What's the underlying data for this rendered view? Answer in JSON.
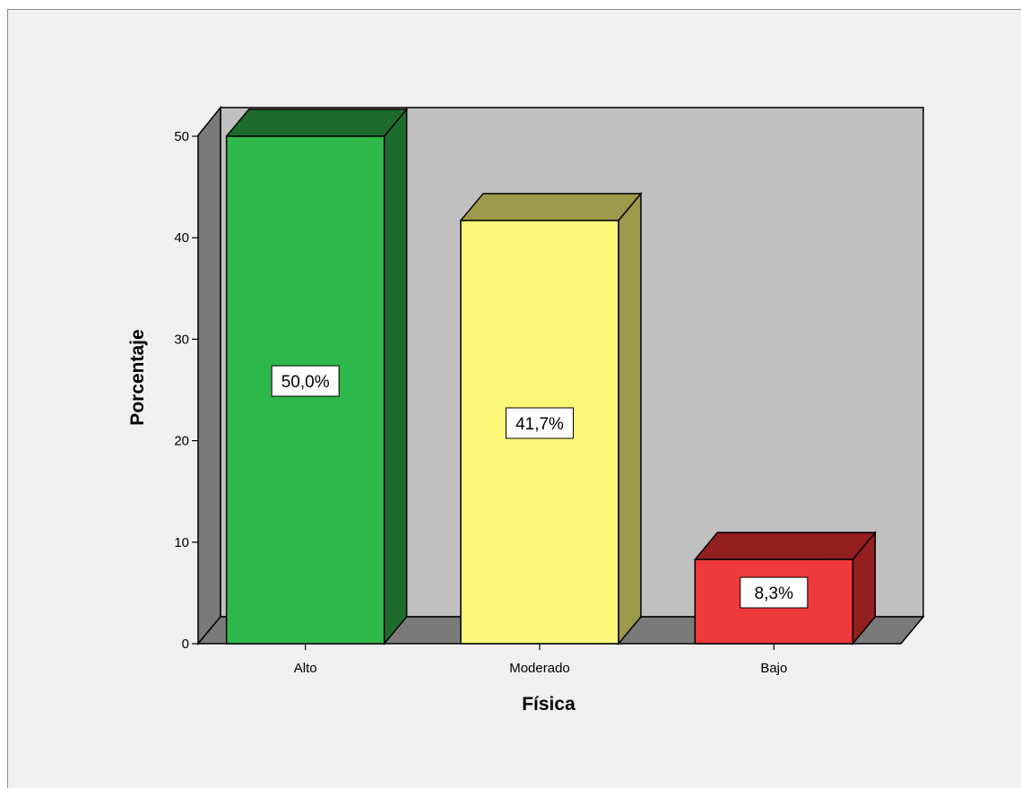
{
  "chart_data": {
    "type": "bar",
    "title": "",
    "xlabel": "Física",
    "ylabel": "Porcentaje",
    "categories": [
      "Alto",
      "Moderado",
      "Bajo"
    ],
    "values": [
      50.0,
      41.7,
      8.3
    ],
    "data_labels": [
      "50,0%",
      "41,7%",
      "8,3%"
    ],
    "ylim": [
      0,
      50
    ],
    "yticks": [
      0,
      10,
      20,
      30,
      40,
      50
    ],
    "grid": false,
    "legend": "none",
    "style": "3d",
    "colors": {
      "front": [
        "#2eb84a",
        "#fcf87a",
        "#ee3a3d"
      ],
      "top": [
        "#1e6c2d",
        "#9e9a4b",
        "#931f21"
      ],
      "side": [
        "#1e6c2d",
        "#9e9a4b",
        "#931f21"
      ],
      "back_wall": "#c0c0c0",
      "side_wall": "#7a7a7a",
      "floor": "#7a7a7a",
      "background": "#f0f0f0"
    }
  }
}
